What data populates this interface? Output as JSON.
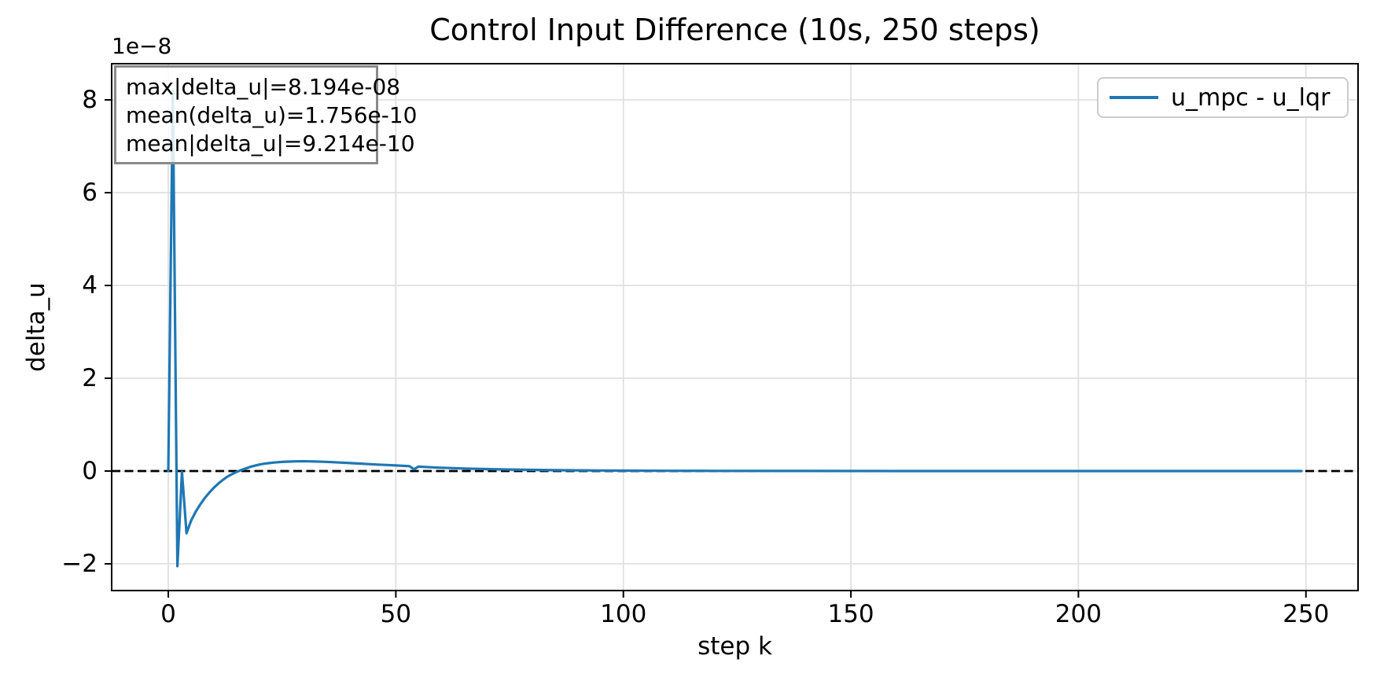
{
  "figure": {
    "background": "#ffffff"
  },
  "chart_data": {
    "type": "line",
    "title": "Control Input Difference (10s, 250 steps)",
    "xlabel": "step k",
    "ylabel": "delta_u",
    "y_offset_label": "1e−8",
    "x_ticks": [
      0,
      50,
      100,
      150,
      200,
      250
    ],
    "x_tick_labels": [
      "0",
      "50",
      "100",
      "150",
      "200",
      "250"
    ],
    "y_ticks": [
      -2,
      0,
      2,
      4,
      6,
      8
    ],
    "y_tick_labels": [
      "−2",
      "0",
      "2",
      "4",
      "6",
      "8"
    ],
    "xlim": [
      -12.45,
      261.45
    ],
    "ylim_1e8": [
      -2.576,
      8.78
    ],
    "grid": true,
    "zero_line": {
      "y": 0,
      "style": "dashed",
      "color": "#000000"
    },
    "colors": {
      "line": "#1f77b4",
      "grid": "#e0e0e0",
      "spine": "#000000"
    },
    "legend": {
      "position": "upper right",
      "entries": [
        {
          "label": "u_mpc - u_lqr",
          "color": "#1f77b4"
        }
      ]
    },
    "stats_lines": [
      "max|delta_u|=8.194e-08",
      "mean(delta_u)=1.756e-10",
      "mean|delta_u|=9.214e-10"
    ],
    "series": [
      {
        "name": "u_mpc - u_lqr",
        "color": "#1f77b4",
        "units": "x: step k, y: delta_u in 1e-8",
        "points": [
          [
            0,
            0.0
          ],
          [
            1,
            8.194
          ],
          [
            2,
            -2.05
          ],
          [
            3,
            -0.02
          ],
          [
            4,
            -1.34
          ],
          [
            5,
            -1.07
          ],
          [
            6,
            -0.88
          ],
          [
            7,
            -0.72
          ],
          [
            8,
            -0.585
          ],
          [
            9,
            -0.465
          ],
          [
            10,
            -0.36
          ],
          [
            11,
            -0.27
          ],
          [
            12,
            -0.19
          ],
          [
            13,
            -0.12
          ],
          [
            14,
            -0.065
          ],
          [
            15,
            -0.02
          ],
          [
            16,
            0.02
          ],
          [
            17,
            0.055
          ],
          [
            18,
            0.09
          ],
          [
            19,
            0.115
          ],
          [
            20,
            0.14
          ],
          [
            21,
            0.158
          ],
          [
            22,
            0.17
          ],
          [
            23,
            0.182
          ],
          [
            24,
            0.19
          ],
          [
            25,
            0.197
          ],
          [
            26,
            0.202
          ],
          [
            27,
            0.206
          ],
          [
            28,
            0.208
          ],
          [
            29,
            0.21
          ],
          [
            30,
            0.21
          ],
          [
            31,
            0.208
          ],
          [
            32,
            0.206
          ],
          [
            34,
            0.2
          ],
          [
            36,
            0.192
          ],
          [
            38,
            0.182
          ],
          [
            40,
            0.172
          ],
          [
            42,
            0.162
          ],
          [
            44,
            0.15
          ],
          [
            46,
            0.14
          ],
          [
            48,
            0.13
          ],
          [
            50,
            0.12
          ],
          [
            51,
            0.115
          ],
          [
            52,
            0.11
          ],
          [
            53,
            0.105
          ],
          [
            54,
            0.04
          ],
          [
            55,
            0.097
          ],
          [
            56,
            0.09
          ],
          [
            58,
            0.08
          ],
          [
            60,
            0.072
          ],
          [
            62,
            0.064
          ],
          [
            65,
            0.055
          ],
          [
            68,
            0.047
          ],
          [
            70,
            0.042
          ],
          [
            75,
            0.032
          ],
          [
            80,
            0.025
          ],
          [
            85,
            0.019
          ],
          [
            90,
            0.015
          ],
          [
            95,
            0.012
          ],
          [
            100,
            0.009
          ],
          [
            110,
            0.006
          ],
          [
            120,
            0.004
          ],
          [
            140,
            0.002
          ],
          [
            160,
            0.001
          ],
          [
            180,
            0.0005
          ],
          [
            200,
            0.0
          ],
          [
            220,
            0.0
          ],
          [
            249,
            0.0
          ]
        ]
      }
    ]
  }
}
